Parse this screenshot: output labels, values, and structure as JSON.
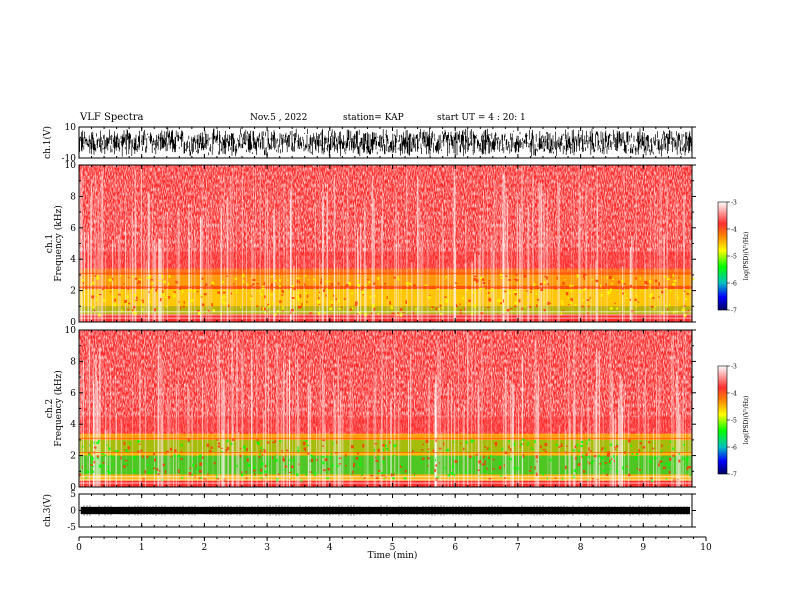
{
  "header": {
    "title": "VLF Spectra",
    "date": "Nov.5 , 2022",
    "station": "station= KAP",
    "start_ut": "start UT = 4 : 20: 1"
  },
  "colors": {
    "spectrogram_high": "#ff0000",
    "spectrogram_mid": "#ffff00",
    "spectrogram_low": "#00ff00",
    "waveform": "#000000"
  },
  "chart_data": [
    {
      "type": "line",
      "panel": "ch1-waveform",
      "ylabel": "ch.1(V)",
      "ylim": [
        -10,
        10
      ],
      "yticks": [
        "10",
        "-10"
      ],
      "description_values": "dense black waveform spanning roughly -10 to 10 V"
    },
    {
      "type": "heatmap",
      "panel": "ch1-spectrogram",
      "ylabel": "ch.1 Frequency (kHz)",
      "ylim": [
        0,
        10
      ],
      "yticks": [
        "0",
        "2",
        "4",
        "6",
        "8",
        "10"
      ],
      "colorbar": {
        "label": "log(PSD)(V²/Hz)",
        "range": [
          -7,
          -3
        ],
        "ticks": [
          "-3",
          "-4",
          "-5",
          "-6",
          "-7"
        ]
      }
    },
    {
      "type": "heatmap",
      "panel": "ch2-spectrogram",
      "ylabel": "ch.2 Frequency (kHz)",
      "ylim": [
        0,
        10
      ],
      "yticks": [
        "0",
        "2",
        "4",
        "6",
        "8",
        "10"
      ],
      "colorbar": {
        "label": "log(PSD)(V²/Hz)",
        "range": [
          -7,
          -3
        ],
        "ticks": [
          "-3",
          "-4",
          "-5",
          "-6",
          "-7"
        ]
      }
    },
    {
      "type": "line",
      "panel": "ch3-waveform",
      "ylabel": "ch.3(V)",
      "ylim": [
        -5,
        5
      ],
      "yticks": [
        "5",
        "0",
        "-5"
      ],
      "xlabel": "Time (min)",
      "xlim": [
        0,
        10
      ],
      "xticks": [
        "0",
        "1",
        "2",
        "3",
        "4",
        "5",
        "6",
        "7",
        "8",
        "9",
        "10"
      ]
    }
  ]
}
